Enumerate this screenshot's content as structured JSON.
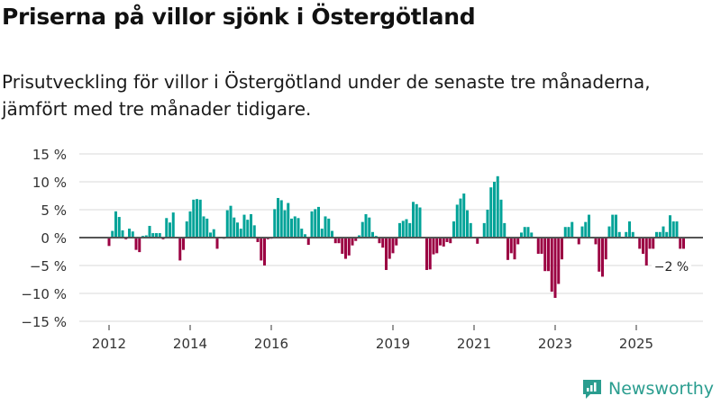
{
  "header": {
    "title": "Priserna på villor sjönk i Östergötland",
    "subtitle": "Prisutveckling för villor i Östergötland under de senaste tre månaderna, jämfört med tre månader tidigare."
  },
  "brand": {
    "name": "Newsworthy",
    "icon": "bar-chart-speech-bubble-icon"
  },
  "colors": {
    "positive": "#00a398",
    "negative": "#9b0042",
    "zero_line": "#555555",
    "grid": "#e0e0e0"
  },
  "chart_data": {
    "type": "bar",
    "title": "Priserna på villor sjönk i Östergötland",
    "xlabel": "",
    "ylabel": "",
    "ylim": [
      -15,
      15
    ],
    "yticks": [
      15,
      10,
      5,
      0,
      -5,
      -10,
      -15
    ],
    "ytick_labels": [
      "15 %",
      "10 %",
      "5 %",
      "0 %",
      "−5 %",
      "−10 %",
      "−15 %"
    ],
    "xticks": [
      "2012",
      "2014",
      "2016",
      "2019",
      "2021",
      "2023",
      "2025"
    ],
    "xtick_months": [
      0,
      24,
      48,
      84,
      108,
      132,
      156
    ],
    "grid": true,
    "annotation": {
      "text": "−2 %",
      "month_index": 166,
      "value": -2
    },
    "start": "2012-01",
    "frequency": "monthly",
    "values": [
      -1.5,
      1.2,
      4.7,
      3.7,
      1.3,
      -0.3,
      1.6,
      1.1,
      -2.2,
      -2.6,
      0.3,
      0.4,
      2.1,
      0.8,
      0.8,
      0.8,
      -0.3,
      3.5,
      2.7,
      4.5,
      0.0,
      -4.1,
      -2.2,
      2.9,
      4.7,
      6.8,
      6.9,
      6.8,
      3.8,
      3.4,
      0.9,
      1.5,
      -2.0,
      0.0,
      -0.2,
      4.9,
      5.7,
      3.6,
      2.7,
      1.6,
      4.1,
      3.2,
      4.2,
      2.2,
      -0.8,
      -4.1,
      -5.0,
      -0.3,
      -0.2,
      5.1,
      7.1,
      6.7,
      4.9,
      6.2,
      3.4,
      3.8,
      3.5,
      1.6,
      0.6,
      -1.3,
      4.7,
      5.1,
      5.5,
      1.6,
      3.8,
      3.4,
      1.2,
      -1.0,
      -1.0,
      -2.9,
      -3.8,
      -3.2,
      -1.4,
      -0.6,
      0.4,
      2.8,
      4.2,
      3.6,
      1.0,
      0.3,
      -1.0,
      -1.8,
      -5.8,
      -3.8,
      -2.8,
      -1.4,
      2.6,
      3.0,
      3.3,
      2.6,
      6.4,
      6.0,
      5.4,
      0.1,
      -5.8,
      -5.7,
      -3.0,
      -2.8,
      -1.4,
      -1.6,
      -0.8,
      -1.0,
      2.9,
      5.9,
      7.0,
      7.9,
      4.9,
      2.6,
      0.0,
      -1.1,
      0.0,
      2.6,
      5.0,
      9.0,
      10.0,
      11.0,
      6.8,
      2.6,
      -4.0,
      -2.8,
      -3.9,
      -1.2,
      0.9,
      1.9,
      1.9,
      0.9,
      0.0,
      -2.9,
      -2.9,
      -6.0,
      -6.0,
      -9.7,
      -10.8,
      -8.3,
      -3.9,
      1.9,
      1.9,
      2.8,
      0.0,
      -1.2,
      2.0,
      2.8,
      4.1,
      0.0,
      -1.2,
      -6.1,
      -7.0,
      -3.9,
      2.0,
      4.1,
      4.1,
      1.0,
      0.0,
      1.0,
      2.9,
      1.0,
      0.0,
      -2.0,
      -2.9,
      -5.0,
      -2.0,
      -2.0,
      1.0,
      1.0,
      2.0,
      1.0,
      4.0,
      2.9,
      2.9,
      -2.0,
      -2.0
    ]
  }
}
